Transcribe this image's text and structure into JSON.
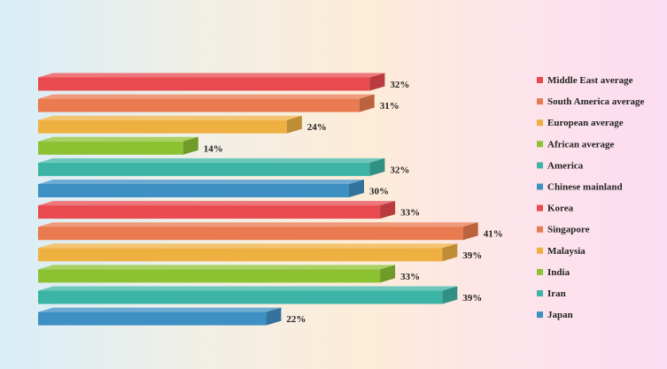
{
  "chart_data": {
    "type": "bar",
    "orientation": "horizontal",
    "style": "3d",
    "value_unit": "%",
    "xlim": [
      0,
      41
    ],
    "legend_position": "right",
    "grid": false,
    "categories": [
      "Middle East average",
      "South America average",
      "European average",
      "African average",
      "America",
      "Chinese mainland",
      "Korea",
      "Singapore",
      "Malaysia",
      "India",
      "Iran",
      "Japan"
    ],
    "values": [
      32,
      31,
      24,
      14,
      32,
      30,
      33,
      41,
      39,
      33,
      39,
      22
    ],
    "value_labels": [
      "32%",
      "31%",
      "24%",
      "14%",
      "32%",
      "30%",
      "33%",
      "41%",
      "39%",
      "33%",
      "39%",
      "22%"
    ],
    "colors": [
      "#e84a4f",
      "#ea7a4f",
      "#efb042",
      "#8cc232",
      "#3cb4a5",
      "#3e8fc3",
      "#e84a4f",
      "#ea7a4f",
      "#efb042",
      "#8cc232",
      "#3cb4a5",
      "#3e8fc3"
    ]
  }
}
